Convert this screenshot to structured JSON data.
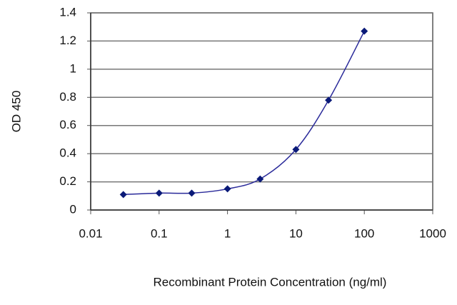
{
  "chart_data": {
    "type": "line",
    "x_label": "Recombinant Protein Concentration (ng/ml)",
    "y_label": "OD 450",
    "x": [
      0.03,
      0.1,
      0.3,
      1,
      3,
      10,
      30,
      100
    ],
    "series": [
      {
        "name": "OD 450",
        "color": "#2a2a9a",
        "marker_color": "#0a1a78",
        "values": [
          0.11,
          0.12,
          0.12,
          0.15,
          0.22,
          0.43,
          0.78,
          1.27
        ]
      }
    ],
    "xscale": "log",
    "xlim": [
      0.01,
      1000
    ],
    "xticks": [
      0.01,
      0.1,
      1,
      10,
      100,
      1000
    ],
    "ylim": [
      0,
      1.4
    ],
    "yticks": [
      0,
      0.2,
      0.4,
      0.6,
      0.8,
      1,
      1.2,
      1.4
    ],
    "grid": true
  }
}
